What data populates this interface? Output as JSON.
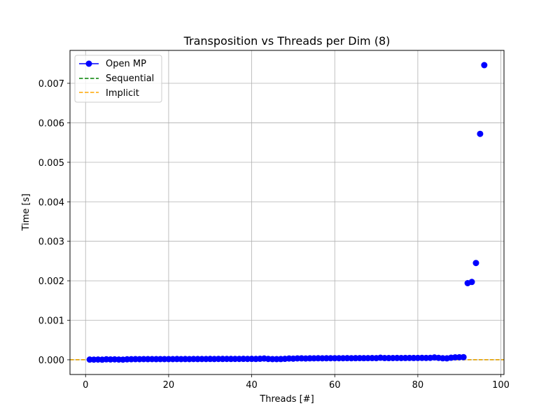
{
  "chart_data": {
    "type": "line",
    "title": "Transposition vs Threads per Dim (8)",
    "xlabel": "Threads [#]",
    "ylabel": "Time [s]",
    "xlim": [
      -3.75,
      100.75
    ],
    "ylim": [
      -0.000373,
      0.007833
    ],
    "xticks": [
      0,
      20,
      40,
      60,
      80,
      100
    ],
    "xtick_labels": [
      "0",
      "20",
      "40",
      "60",
      "80",
      "100"
    ],
    "yticks": [
      0,
      0.001,
      0.002,
      0.003,
      0.004,
      0.005,
      0.006,
      0.007
    ],
    "ytick_labels": [
      "0.000",
      "0.001",
      "0.002",
      "0.003",
      "0.004",
      "0.005",
      "0.006",
      "0.007"
    ],
    "grid": true,
    "legend_position": "top-left",
    "series": [
      {
        "name": "Open MP",
        "style": "solid-line-with-circle-markers",
        "color": "#0000ff",
        "x": [
          1,
          2,
          3,
          4,
          5,
          6,
          7,
          8,
          9,
          10,
          11,
          12,
          13,
          14,
          15,
          16,
          17,
          18,
          19,
          20,
          21,
          22,
          23,
          24,
          25,
          26,
          27,
          28,
          29,
          30,
          31,
          32,
          33,
          34,
          35,
          36,
          37,
          38,
          39,
          40,
          41,
          42,
          43,
          44,
          45,
          46,
          47,
          48,
          49,
          50,
          51,
          52,
          53,
          54,
          55,
          56,
          57,
          58,
          59,
          60,
          61,
          62,
          63,
          64,
          65,
          66,
          67,
          68,
          69,
          70,
          71,
          72,
          73,
          74,
          75,
          76,
          77,
          78,
          79,
          80,
          81,
          82,
          83,
          84,
          85,
          86,
          87,
          88,
          89,
          90,
          91,
          92,
          93,
          94,
          95,
          96
        ],
        "y": [
          5e-06,
          4e-06,
          6e-06,
          3e-06,
          1.2e-05,
          9e-06,
          1.1e-05,
          6e-06,
          4e-06,
          1.2e-05,
          1.4e-05,
          1.6e-05,
          1.5e-05,
          1.7e-05,
          1.6e-05,
          1.7e-05,
          1.6e-05,
          1.8e-05,
          1.7e-05,
          1.8e-05,
          1.7e-05,
          1.9e-05,
          1.8e-05,
          1.9e-05,
          1.8e-05,
          2e-05,
          1.9e-05,
          2e-05,
          2e-05,
          2.1e-05,
          2e-05,
          2.2e-05,
          2.1e-05,
          2.2e-05,
          2.1e-05,
          2.2e-05,
          2.2e-05,
          2.3e-05,
          2.2e-05,
          2.3e-05,
          2.1e-05,
          2.5e-05,
          3.2e-05,
          2.2e-05,
          1.8e-05,
          1.7e-05,
          1.9e-05,
          2.4e-05,
          3.2e-05,
          2.8e-05,
          3.5e-05,
          3.6e-05,
          3.3e-05,
          3.6e-05,
          3.7e-05,
          3.8e-05,
          3.7e-05,
          3.8e-05,
          3.9e-05,
          4e-05,
          3.9e-05,
          4e-05,
          4.1e-05,
          4e-05,
          4.1e-05,
          4.2e-05,
          4.1e-05,
          4.2e-05,
          4.3e-05,
          4.2e-05,
          5.2e-05,
          4.4e-05,
          4.3e-05,
          4.4e-05,
          4.5e-05,
          4.4e-05,
          4.5e-05,
          4.6e-05,
          4.5e-05,
          4.6e-05,
          4.7e-05,
          4.6e-05,
          4.8e-05,
          5.8e-05,
          4.9e-05,
          3.8e-05,
          3.6e-05,
          5.2e-05,
          6.2e-05,
          6.4e-05,
          6.6e-05,
          0.00194,
          0.00197,
          0.00245,
          0.00572,
          0.00746
        ]
      },
      {
        "name": "Sequential",
        "style": "dashed-line",
        "color": "#008000",
        "y_constant": 1e-06
      },
      {
        "name": "Implicit",
        "style": "dashed-line",
        "color": "#ffa500",
        "y_constant": 2e-06
      }
    ]
  },
  "colors": {
    "grid": "#b0b0b0",
    "axes": "#000000",
    "legend_border": "#cccccc"
  }
}
